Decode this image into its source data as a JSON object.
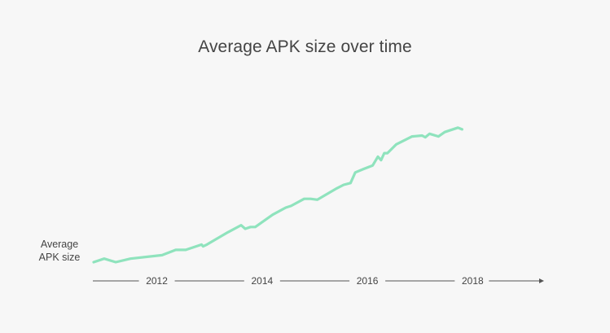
{
  "chart_data": {
    "type": "line",
    "title": "Average APK size over time",
    "ylabel": "Average APK size",
    "xlabel": "",
    "x_ticks": [
      "2012",
      "2014",
      "2016",
      "2018"
    ],
    "tick_values": [
      2012,
      2014,
      2016,
      2018
    ],
    "xlim": [
      2010.8,
      2019.0
    ],
    "ylim": [
      0,
      100
    ],
    "y_ticks_shown": false,
    "grid": false,
    "legend": "none",
    "line_color": "#8fe3bd",
    "axis_color": "#555555",
    "series": [
      {
        "values_note": "",
        "x": [
          2010.8,
          2011.0,
          2011.22,
          2011.5,
          2012.1,
          2012.36,
          2012.55,
          2012.85,
          2012.88,
          2012.95,
          2013.35,
          2013.6,
          2013.68,
          2013.78,
          2013.87,
          2014.2,
          2014.45,
          2014.55,
          2014.8,
          2014.92,
          2015.05,
          2015.42,
          2015.55,
          2015.68,
          2015.77,
          2015.93,
          2016.1,
          2016.2,
          2016.26,
          2016.32,
          2016.38,
          2016.55,
          2016.85,
          2017.04,
          2017.1,
          2017.18,
          2017.35,
          2017.47,
          2017.72,
          2017.8
        ],
        "y": [
          0,
          2,
          0,
          2,
          4,
          7,
          7,
          10,
          9,
          10,
          17,
          21,
          19,
          20,
          20,
          27,
          31,
          32,
          36,
          36,
          35.5,
          42,
          44,
          45,
          51,
          53,
          55,
          60,
          58,
          62,
          62,
          67,
          71.5,
          72,
          71,
          73,
          71.5,
          74,
          76.5,
          75.5
        ]
      }
    ]
  }
}
